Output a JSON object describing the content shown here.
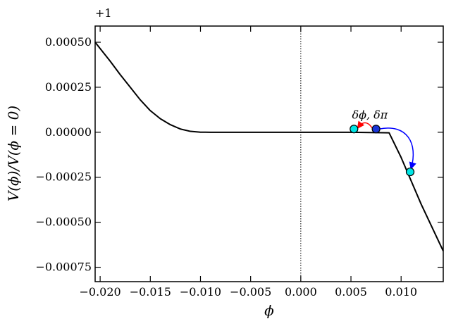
{
  "chart_data": {
    "type": "line",
    "title": "",
    "xlabel": "ϕ",
    "ylabel": "V(ϕ)/V(ϕ = 0)",
    "y_offset_label": "+1",
    "xlim": [
      -0.0205,
      0.0142
    ],
    "ylim": [
      -0.00083,
      0.00059
    ],
    "x_ticks": [
      -0.02,
      -0.015,
      -0.01,
      -0.005,
      0.0,
      0.005,
      0.01
    ],
    "x_tick_labels": [
      "−0.020",
      "−0.015",
      "−0.010",
      "−0.005",
      "0.000",
      "0.005",
      "0.010"
    ],
    "y_ticks": [
      0.0005,
      0.00025,
      0.0,
      -0.00025,
      -0.0005,
      -0.00075
    ],
    "y_tick_labels": [
      "0.00050",
      "0.00025",
      "0.00000",
      "−0.00025",
      "−0.00050",
      "−0.00075"
    ],
    "grid": false,
    "vertical_reference_line_x": 0.0,
    "series": [
      {
        "color": "#000000",
        "x": [
          -0.0205,
          -0.019,
          -0.018,
          -0.017,
          -0.016,
          -0.015,
          -0.014,
          -0.013,
          -0.012,
          -0.011,
          -0.01,
          -0.0095,
          -0.009,
          -0.005,
          0.0,
          0.005,
          0.0088,
          0.01,
          0.012,
          0.0142
        ],
        "y": [
          0.0005,
          0.000395,
          0.00032,
          0.00025,
          0.00018,
          0.00012,
          7.5e-05,
          4.2e-05,
          1.8e-05,
          5e-06,
          5e-07,
          1e-07,
          0.0,
          0.0,
          0.0,
          0.0,
          -3e-06,
          -0.00014,
          -0.0004,
          -0.00066
        ]
      }
    ],
    "markers": [
      {
        "x": 0.0053,
        "y": 1.8e-05,
        "color": "#00e5e5"
      },
      {
        "x": 0.0075,
        "y": 1.8e-05,
        "color": "#1a35d8"
      },
      {
        "x": 0.0109,
        "y": -0.00022,
        "color": "#00e5e5"
      }
    ],
    "arrows": [
      {
        "from": [
          0.0071,
          2.5e-05
        ],
        "to": [
          0.0057,
          2.5e-05
        ],
        "color": "#ff0000"
      },
      {
        "from": [
          0.0078,
          1.8e-05
        ],
        "to": [
          0.011,
          -0.0002
        ],
        "color": "#0000ff"
      }
    ],
    "annotation": {
      "text": "δϕ, δπ",
      "x": 0.0051,
      "y": 7.5e-05
    }
  }
}
